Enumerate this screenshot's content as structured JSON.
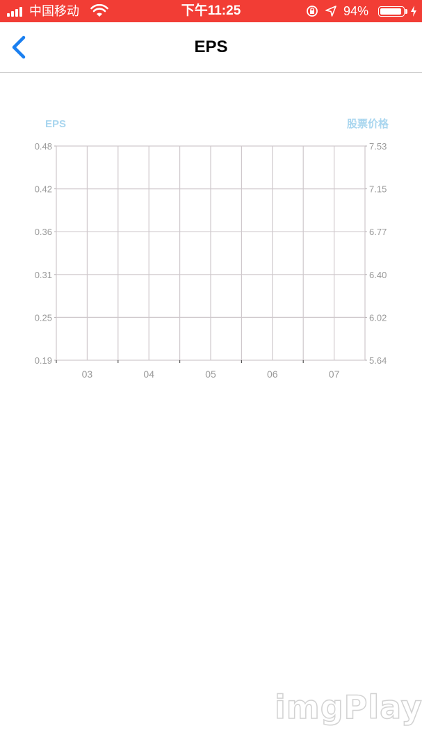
{
  "status_bar": {
    "carrier": "中国移动",
    "time": "下午11:25",
    "battery_percent": "94%",
    "background_color": "#f23d35"
  },
  "nav": {
    "title": "EPS",
    "back_icon": "chevron-left-icon",
    "accent_color": "#1a7ff0"
  },
  "chart_data": {
    "type": "line",
    "title": "",
    "left_axis_label": "EPS",
    "right_axis_label": "股票价格",
    "legend_color": "#a9d6ef",
    "categories": [
      "03",
      "04",
      "05",
      "06",
      "07"
    ],
    "left_ticks": [
      "0.48",
      "0.42",
      "0.36",
      "0.31",
      "0.25",
      "0.19"
    ],
    "right_ticks": [
      "7.53",
      "7.15",
      "6.77",
      "6.40",
      "6.02",
      "5.64"
    ],
    "left_ylim": [
      0.19,
      0.48
    ],
    "right_ylim": [
      5.64,
      7.53
    ],
    "grid": true,
    "series": []
  },
  "watermark": "imgPlay"
}
